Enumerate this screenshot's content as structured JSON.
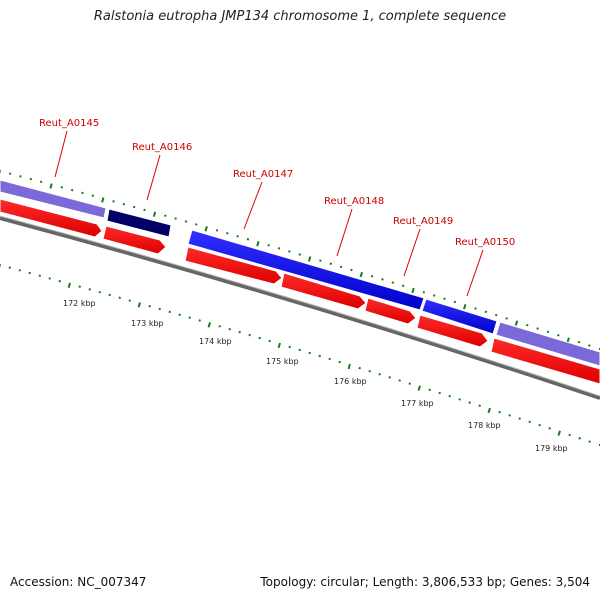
{
  "title": "Ralstonia eutropha JMP134 chromosome 1, complete sequence",
  "footer": {
    "accession": "Accession: NC_007347",
    "summary": "Topology: circular; Length: 3,806,533 bp; Genes: 3,504"
  },
  "colors": {
    "gene_strand_outer": "#0000ee",
    "gene_strand_outer_other": "#7b68d9",
    "gene_strand_outer_dark": "#000066",
    "cds_red": "#ff0000",
    "backbone": "#888888",
    "tick_green": "#1a7a1a",
    "label_red": "#cc0000"
  },
  "gene_labels": [
    {
      "name": "Reut_A0145"
    },
    {
      "name": "Reut_A0146"
    },
    {
      "name": "Reut_A0147"
    },
    {
      "name": "Reut_A0148"
    },
    {
      "name": "Reut_A0149"
    },
    {
      "name": "Reut_A0150"
    }
  ],
  "scale_ticks": [
    {
      "label": "172 kbp"
    },
    {
      "label": "173 kbp"
    },
    {
      "label": "174 kbp"
    },
    {
      "label": "175 kbp"
    },
    {
      "label": "176 kbp"
    },
    {
      "label": "177 kbp"
    },
    {
      "label": "178 kbp"
    },
    {
      "label": "179 kbp"
    }
  ]
}
